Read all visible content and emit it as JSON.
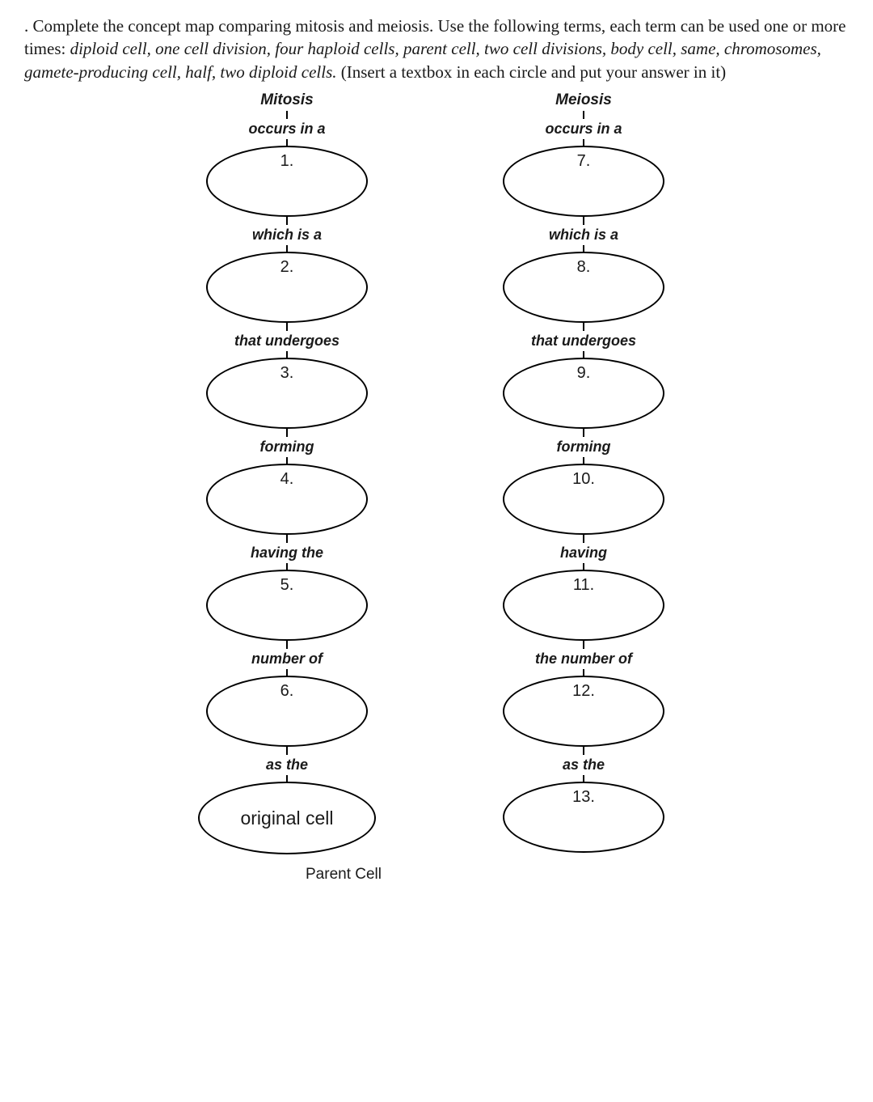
{
  "instructions": {
    "lead": ". Complete the concept map comparing mitosis and meiosis.  Use the following terms, each term can be used one or more times: ",
    "terms": "diploid cell, one cell division, four haploid cells, parent cell, two cell divisions, body cell, same, chromosomes, gamete-producing cell, half, two diploid cells.",
    "trail": " (Insert a textbox in each circle and put your answer in it)"
  },
  "left": {
    "title": "Mitosis",
    "steps": [
      {
        "link": "occurs in a",
        "num": "1."
      },
      {
        "link": "which is a",
        "num": "2."
      },
      {
        "link": "that undergoes",
        "num": "3."
      },
      {
        "link": "forming",
        "num": "4."
      },
      {
        "link": "having the",
        "num": "5."
      },
      {
        "link": "number of",
        "num": "6."
      },
      {
        "link": "as the",
        "num": "",
        "final": "original cell"
      }
    ],
    "footer": "Parent Cell"
  },
  "right": {
    "title": "Meiosis",
    "steps": [
      {
        "link": "occurs in a",
        "num": "7."
      },
      {
        "link": "which is a",
        "num": "8."
      },
      {
        "link": "that undergoes",
        "num": "9."
      },
      {
        "link": "forming",
        "num": "10."
      },
      {
        "link": "having",
        "num": "11."
      },
      {
        "link": "the number of",
        "num": "12."
      },
      {
        "link": "as the",
        "num": "13."
      }
    ]
  },
  "style": {
    "ellipse_border": "#000000",
    "background": "#ffffff",
    "font_body": "Georgia",
    "font_labels": "Arial"
  }
}
